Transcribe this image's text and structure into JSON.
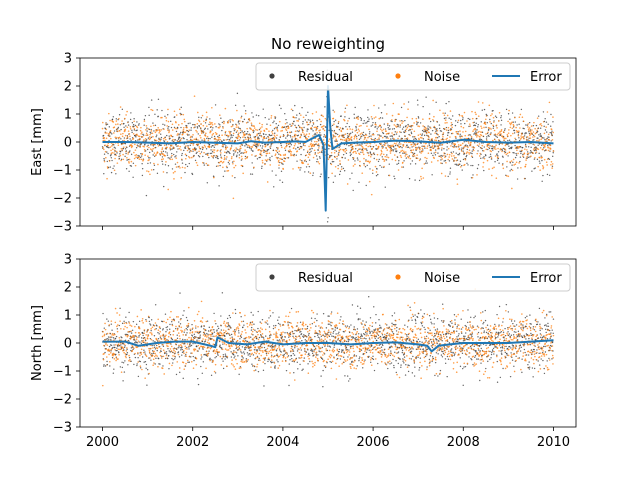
{
  "chart_data": [
    {
      "type": "scatter",
      "title": "No reweighting",
      "xlabel": "",
      "ylabel": "East [mm]",
      "xlim": [
        1999.5,
        2010.5
      ],
      "ylim": [
        -3,
        3
      ],
      "yticks": [
        -3,
        -2,
        -1,
        0,
        1,
        2,
        3
      ],
      "ytick_labels": [
        "−3",
        "−2",
        "−1",
        "0",
        "1",
        "2",
        "3"
      ],
      "xticks": [
        2000,
        2002,
        2004,
        2006,
        2008,
        2010
      ],
      "xtick_labels": [
        "",
        "",
        "",
        "",
        "",
        ""
      ],
      "grid": false,
      "legend": {
        "placement": "top-right",
        "entries": [
          "Residual",
          "Noise",
          "Error"
        ]
      },
      "series": [
        {
          "name": "Residual",
          "kind": "scatter",
          "color": "#404040",
          "description_stats": {
            "x_range": [
              2000,
              2010
            ],
            "approx_mean": 0,
            "approx_std": 0.55
          }
        },
        {
          "name": "Noise",
          "kind": "scatter",
          "color": "#ff7f0e",
          "description_stats": {
            "x_range": [
              2000,
              2010
            ],
            "approx_mean": 0,
            "approx_std": 0.5
          }
        },
        {
          "name": "Error",
          "kind": "line",
          "color": "#1f77b4",
          "x": [
            2000,
            2000.5,
            2001,
            2001.5,
            2002,
            2002.5,
            2003,
            2003.3,
            2003.6,
            2004,
            2004.3,
            2004.5,
            2004.8,
            2004.9,
            2004.95,
            2005.0,
            2005.05,
            2005.1,
            2005.3,
            2005.6,
            2006,
            2006.5,
            2007,
            2007.5,
            2008,
            2008.5,
            2009,
            2009.5,
            2010
          ],
          "y": [
            0.0,
            0.0,
            -0.02,
            -0.05,
            0.0,
            -0.03,
            -0.05,
            0.03,
            -0.02,
            0.0,
            0.02,
            0.0,
            0.25,
            -0.1,
            -2.45,
            2.0,
            0.5,
            -0.25,
            -0.05,
            -0.02,
            0.0,
            0.05,
            0.02,
            -0.03,
            0.08,
            0.0,
            -0.02,
            0.0,
            -0.05
          ]
        }
      ]
    },
    {
      "type": "scatter",
      "title": "",
      "xlabel": "",
      "ylabel": "North [mm]",
      "xlim": [
        1999.5,
        2010.5
      ],
      "ylim": [
        -3,
        3
      ],
      "yticks": [
        -3,
        -2,
        -1,
        0,
        1,
        2,
        3
      ],
      "ytick_labels": [
        "−3",
        "−2",
        "−1",
        "0",
        "1",
        "2",
        "3"
      ],
      "xticks": [
        2000,
        2002,
        2004,
        2006,
        2008,
        2010
      ],
      "xtick_labels": [
        "2000",
        "2002",
        "2004",
        "2006",
        "2008",
        "2010"
      ],
      "grid": false,
      "legend": {
        "placement": "top-right",
        "entries": [
          "Residual",
          "Noise",
          "Error"
        ]
      },
      "series": [
        {
          "name": "Residual",
          "kind": "scatter",
          "color": "#404040",
          "description_stats": {
            "x_range": [
              2000,
              2010
            ],
            "approx_mean": 0,
            "approx_std": 0.5
          }
        },
        {
          "name": "Noise",
          "kind": "scatter",
          "color": "#ff7f0e",
          "description_stats": {
            "x_range": [
              2000,
              2010
            ],
            "approx_mean": 0,
            "approx_std": 0.45
          }
        },
        {
          "name": "Error",
          "kind": "line",
          "color": "#1f77b4",
          "x": [
            2000,
            2000.5,
            2000.8,
            2001.2,
            2001.6,
            2002,
            2002.4,
            2002.5,
            2002.55,
            2002.8,
            2003.2,
            2003.6,
            2004,
            2004.5,
            2005,
            2005.5,
            2006,
            2006.5,
            2007,
            2007.2,
            2007.3,
            2007.45,
            2007.7,
            2008,
            2008.5,
            2009,
            2009.5,
            2010
          ],
          "y": [
            0.05,
            0.05,
            -0.1,
            0.0,
            0.05,
            0.05,
            -0.1,
            -0.15,
            0.2,
            0.0,
            -0.05,
            0.05,
            -0.05,
            0.0,
            0.0,
            -0.05,
            0.0,
            0.02,
            -0.05,
            -0.1,
            -0.3,
            -0.1,
            -0.05,
            0.0,
            0.0,
            0.0,
            0.05,
            0.1
          ]
        }
      ]
    }
  ]
}
